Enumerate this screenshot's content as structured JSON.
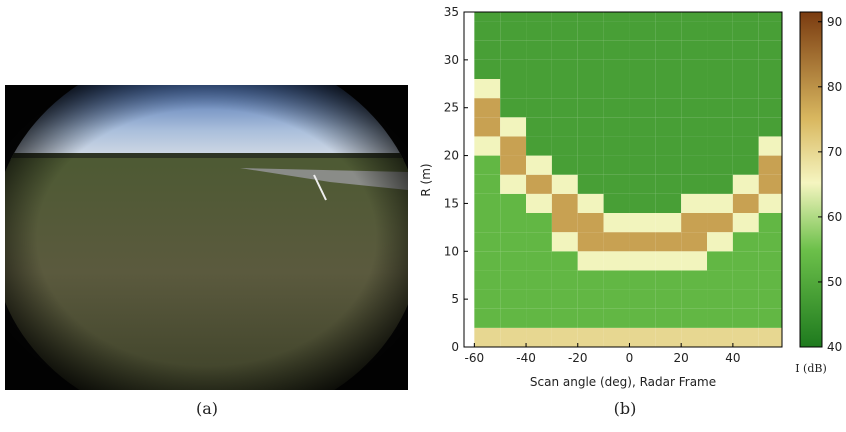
{
  "captions": [
    "(a)",
    "(b)"
  ],
  "chart_data": {
    "type": "heatmap",
    "xlabel": "Scan angle (deg), Radar Frame",
    "ylabel": "R (m)",
    "x": [
      -55,
      -45,
      -35,
      -25,
      -15,
      -5,
      5,
      15,
      25,
      35,
      45,
      55
    ],
    "y": [
      1,
      3,
      5,
      7,
      9,
      11,
      13,
      15,
      17,
      19,
      21,
      23,
      25,
      27,
      29,
      31,
      33,
      35
    ],
    "z": [
      [
        70,
        70,
        70,
        70,
        70,
        70,
        70,
        70,
        70,
        70,
        70,
        70
      ],
      [
        53,
        53,
        53,
        53,
        53,
        53,
        53,
        53,
        53,
        53,
        53,
        53
      ],
      [
        53,
        53,
        53,
        53,
        53,
        53,
        53,
        53,
        53,
        53,
        53,
        53
      ],
      [
        53,
        53,
        53,
        53,
        53,
        53,
        53,
        53,
        53,
        53,
        53,
        53
      ],
      [
        53,
        53,
        53,
        53,
        65,
        65,
        65,
        65,
        65,
        53,
        53,
        53
      ],
      [
        53,
        53,
        53,
        65,
        78,
        78,
        78,
        78,
        78,
        65,
        53,
        53
      ],
      [
        53,
        53,
        53,
        78,
        78,
        65,
        65,
        65,
        78,
        78,
        65,
        53
      ],
      [
        53,
        53,
        65,
        78,
        65,
        48,
        48,
        48,
        65,
        65,
        78,
        65
      ],
      [
        53,
        65,
        78,
        65,
        48,
        48,
        48,
        48,
        48,
        48,
        65,
        78
      ],
      [
        53,
        78,
        65,
        48,
        48,
        48,
        48,
        48,
        48,
        48,
        48,
        78
      ],
      [
        65,
        78,
        48,
        48,
        48,
        48,
        48,
        48,
        48,
        48,
        48,
        65
      ],
      [
        78,
        65,
        48,
        48,
        48,
        48,
        48,
        48,
        48,
        48,
        48,
        48
      ],
      [
        78,
        48,
        48,
        48,
        48,
        48,
        48,
        48,
        48,
        48,
        48,
        48
      ],
      [
        65,
        48,
        48,
        48,
        48,
        48,
        48,
        48,
        48,
        48,
        48,
        48
      ],
      [
        48,
        48,
        48,
        48,
        48,
        48,
        48,
        48,
        48,
        48,
        48,
        48
      ],
      [
        48,
        48,
        48,
        48,
        48,
        48,
        48,
        48,
        48,
        48,
        48,
        48
      ],
      [
        48,
        48,
        48,
        48,
        48,
        48,
        48,
        48,
        48,
        48,
        48,
        48
      ],
      [
        48,
        48,
        48,
        48,
        48,
        48,
        48,
        48,
        48,
        48,
        48,
        48
      ]
    ],
    "xlim": [
      -64,
      59
    ],
    "ylim": [
      0,
      35
    ],
    "xticks": [
      -60,
      -40,
      -20,
      0,
      20,
      40
    ],
    "yticks": [
      0,
      5,
      10,
      15,
      20,
      25,
      30,
      35
    ],
    "colorbar": {
      "label": "I (dB)",
      "lim": [
        40,
        91.5
      ],
      "ticks": [
        40,
        50,
        60,
        70,
        80,
        90
      ]
    }
  }
}
